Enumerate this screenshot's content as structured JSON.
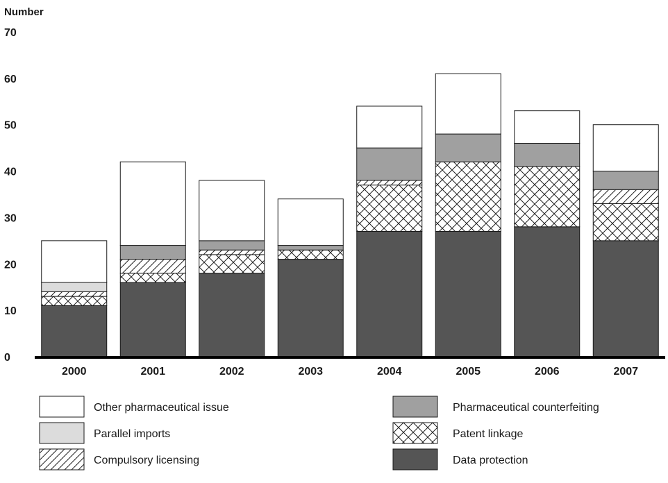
{
  "chart_data": {
    "type": "bar",
    "stacked": true,
    "ylabel": "Number",
    "xlabel": "",
    "ylim": [
      0,
      70
    ],
    "yticks": [
      0,
      10,
      20,
      30,
      40,
      50,
      60,
      70
    ],
    "grid": false,
    "legend_position": "bottom",
    "categories": [
      "2000",
      "2001",
      "2002",
      "2003",
      "2004",
      "2005",
      "2006",
      "2007"
    ],
    "series": [
      {
        "name": "Data protection",
        "fill": "solid",
        "color": "#555555",
        "values": [
          11,
          16,
          18,
          21,
          27,
          27,
          28,
          25
        ]
      },
      {
        "name": "Patent linkage",
        "fill": "crosshatch",
        "color": "#ffffff",
        "values": [
          2,
          2,
          4,
          2,
          10,
          15,
          13,
          8
        ]
      },
      {
        "name": "Compulsory licensing",
        "fill": "diagonal",
        "color": "#ffffff",
        "values": [
          1,
          3,
          1,
          0,
          1,
          0,
          0,
          3
        ]
      },
      {
        "name": "Parallel imports",
        "fill": "solid",
        "color": "#dcdcdc",
        "values": [
          2,
          0,
          0,
          0,
          0,
          0,
          0,
          0
        ]
      },
      {
        "name": "Pharmaceutical counterfeiting",
        "fill": "solid",
        "color": "#a0a0a0",
        "values": [
          0,
          3,
          2,
          1,
          7,
          6,
          5,
          4
        ]
      },
      {
        "name": "Other pharmaceutical issue",
        "fill": "solid",
        "color": "#ffffff",
        "values": [
          9,
          18,
          13,
          10,
          9,
          13,
          7,
          10
        ]
      }
    ],
    "legend_order": [
      "Other pharmaceutical issue",
      "Parallel imports",
      "Compulsory licensing",
      "Pharmaceutical counterfeiting",
      "Patent linkage",
      "Data protection"
    ]
  }
}
